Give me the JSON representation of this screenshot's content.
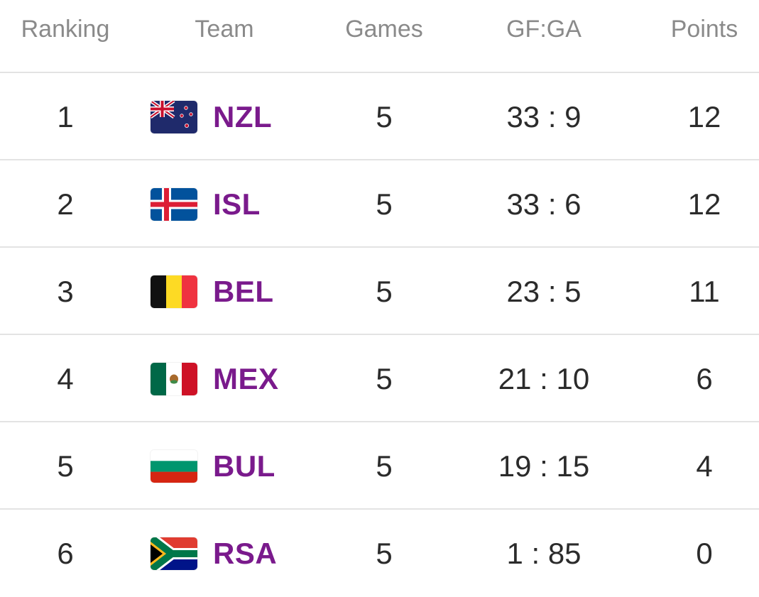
{
  "table": {
    "headers": {
      "ranking": "Ranking",
      "team": "Team",
      "games": "Games",
      "gfga": "GF:GA",
      "points": "Points"
    },
    "accent_color": "#7a1a8c",
    "rows": [
      {
        "rank": "1",
        "flag_icon": "new-zealand-flag-icon",
        "code": "NZL",
        "games": "5",
        "gfga": "33 : 9",
        "points": "12"
      },
      {
        "rank": "2",
        "flag_icon": "iceland-flag-icon",
        "code": "ISL",
        "games": "5",
        "gfga": "33 : 6",
        "points": "12"
      },
      {
        "rank": "3",
        "flag_icon": "belgium-flag-icon",
        "code": "BEL",
        "games": "5",
        "gfga": "23 : 5",
        "points": "11"
      },
      {
        "rank": "4",
        "flag_icon": "mexico-flag-icon",
        "code": "MEX",
        "games": "5",
        "gfga": "21 : 10",
        "points": "6"
      },
      {
        "rank": "5",
        "flag_icon": "bulgaria-flag-icon",
        "code": "BUL",
        "games": "5",
        "gfga": "19 : 15",
        "points": "4"
      },
      {
        "rank": "6",
        "flag_icon": "south-africa-flag-icon",
        "code": "RSA",
        "games": "5",
        "gfga": "1 : 85",
        "points": "0"
      }
    ]
  }
}
